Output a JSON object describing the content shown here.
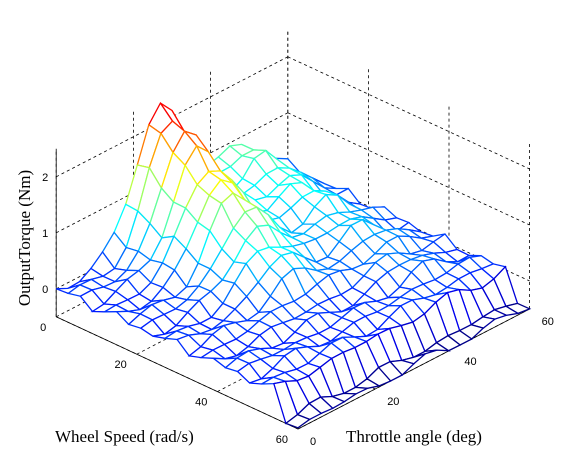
{
  "chart_data": {
    "type": "surface",
    "xlabel": "Wheel Speed (rad/s)",
    "ylabel": "Throttle angle (deg)",
    "zlabel": "OutputTorque (Nm)",
    "xlim": [
      0,
      60
    ],
    "ylim": [
      0,
      60
    ],
    "zlim": [
      -0.5,
      2.5
    ],
    "x_ticks": [
      "0",
      "20",
      "40",
      "60"
    ],
    "y_ticks": [
      "0",
      "20",
      "40",
      "60"
    ],
    "z_ticks": [
      "0",
      "1",
      "2"
    ],
    "grid": true,
    "colormap": "jet",
    "surface_shape": "high arch ridge (peak about 2.4 Nm) near throttle 20-30 deg at low wheel speed, falling to about 0 at high wheel speed and low throttle; secondary ridge about 1.0 Nm near throttle 40-50 deg; noisy near-zero plateau elsewhere; negative edge values near -0.5 Nm at wheel speed 60"
  }
}
